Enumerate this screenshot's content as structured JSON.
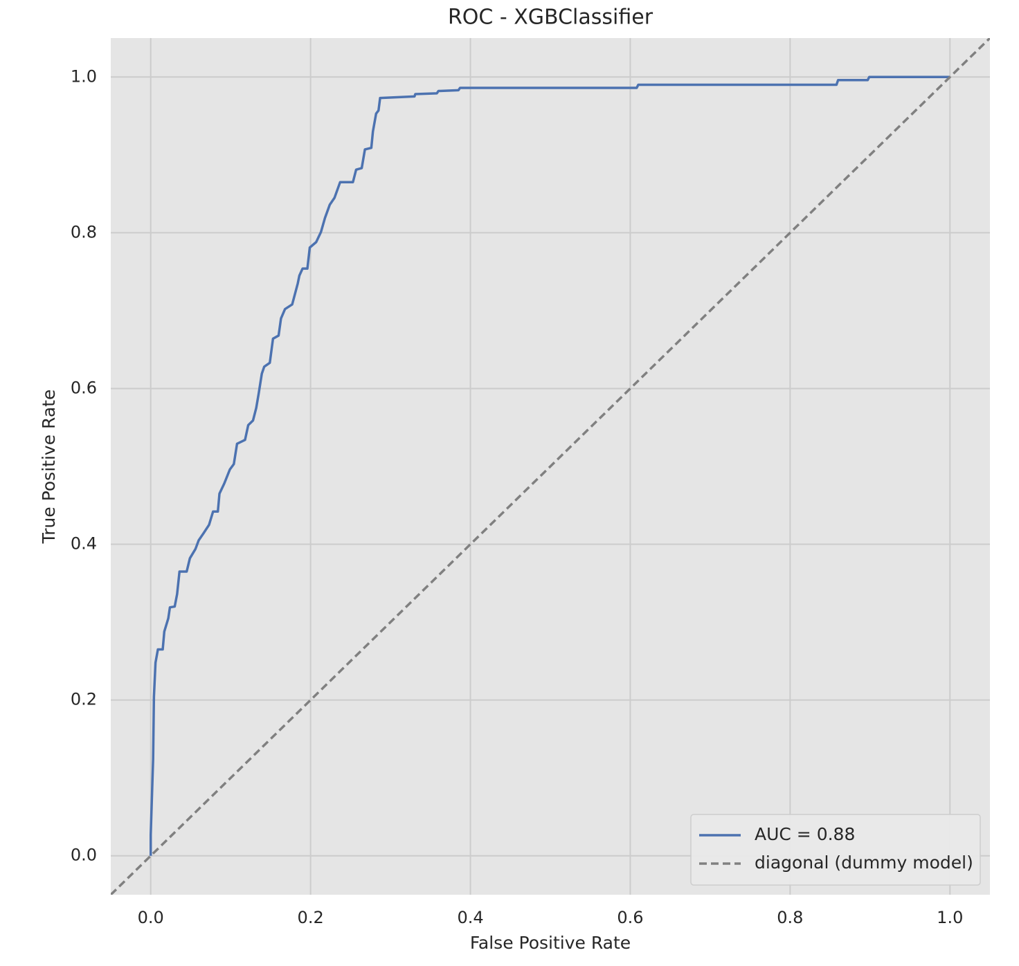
{
  "chart_data": {
    "type": "line",
    "title": "ROC - XGBClassifier",
    "xlabel": "False Positive Rate",
    "ylabel": "True Positive Rate",
    "xlim": [
      -0.05,
      1.05
    ],
    "ylim": [
      -0.05,
      1.05
    ],
    "xticks": [
      {
        "value": 0,
        "label": "0.0"
      },
      0.2,
      0.4,
      0.6,
      0.8,
      {
        "value": 1,
        "label": "1.0"
      }
    ],
    "yticks": [
      {
        "value": 0,
        "label": "0.0"
      },
      0.2,
      0.4,
      0.6,
      0.8,
      {
        "value": 1,
        "label": "1.0"
      }
    ],
    "grid": true,
    "legend": "lower right",
    "series": [
      {
        "name": "AUC = 0.88",
        "color": "#4c72b0",
        "linestyle": "solid",
        "x": [
          0,
          0,
          0.003,
          0.004,
          0.006,
          0.009,
          0.015,
          0.017,
          0.022,
          0.024,
          0.03,
          0.033,
          0.036,
          0.045,
          0.049,
          0.056,
          0.06,
          0.066,
          0.073,
          0.078,
          0.084,
          0.086,
          0.092,
          0.099,
          0.104,
          0.108,
          0.118,
          0.122,
          0.128,
          0.132,
          0.135,
          0.139,
          0.142,
          0.149,
          0.153,
          0.16,
          0.163,
          0.168,
          0.177,
          0.184,
          0.186,
          0.19,
          0.196,
          0.199,
          0.207,
          0.213,
          0.218,
          0.224,
          0.23,
          0.237,
          0.253,
          0.257,
          0.264,
          0.268,
          0.276,
          0.278,
          0.282,
          0.285,
          0.287,
          0.33,
          0.331,
          0.358,
          0.36,
          0.385,
          0.387,
          0.608,
          0.61,
          0.858,
          0.86,
          0.897,
          0.899,
          1.0
        ],
        "values": [
          0,
          0.027,
          0.124,
          0.204,
          0.248,
          0.265,
          0.265,
          0.288,
          0.305,
          0.319,
          0.32,
          0.336,
          0.365,
          0.365,
          0.382,
          0.394,
          0.405,
          0.414,
          0.425,
          0.442,
          0.442,
          0.465,
          0.478,
          0.496,
          0.503,
          0.529,
          0.534,
          0.553,
          0.559,
          0.575,
          0.593,
          0.619,
          0.628,
          0.633,
          0.664,
          0.668,
          0.69,
          0.702,
          0.708,
          0.735,
          0.745,
          0.754,
          0.754,
          0.781,
          0.788,
          0.801,
          0.819,
          0.836,
          0.845,
          0.865,
          0.865,
          0.881,
          0.883,
          0.907,
          0.909,
          0.93,
          0.953,
          0.957,
          0.973,
          0.975,
          0.978,
          0.979,
          0.982,
          0.983,
          0.986,
          0.986,
          0.99,
          0.99,
          0.996,
          0.996,
          1.0,
          1.0
        ]
      },
      {
        "name": "diagonal (dummy model)",
        "color": "#808080",
        "linestyle": "dashed",
        "x": [
          -0.05,
          1.05
        ],
        "values": [
          -0.05,
          1.05
        ]
      }
    ]
  }
}
